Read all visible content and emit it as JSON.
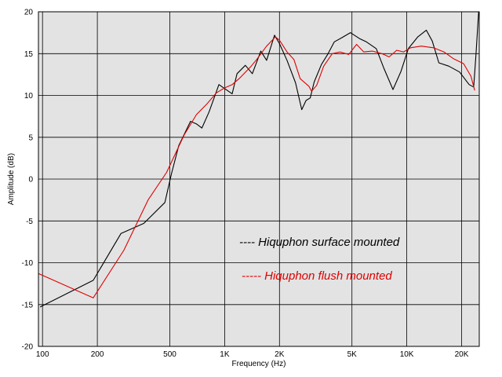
{
  "chart_data": {
    "type": "line",
    "x_scale": "log",
    "xlim": [
      95,
      25000
    ],
    "ylim": [
      -20,
      20
    ],
    "grid": true,
    "xlabel": "Frequency (Hz)",
    "ylabel": "Amplitude (dB)",
    "x_ticks": [
      {
        "value": 100,
        "label": "100"
      },
      {
        "value": 200,
        "label": "200"
      },
      {
        "value": 500,
        "label": "500"
      },
      {
        "value": 1000,
        "label": "1K"
      },
      {
        "value": 2000,
        "label": "2K"
      },
      {
        "value": 5000,
        "label": "5K"
      },
      {
        "value": 10000,
        "label": "10K"
      },
      {
        "value": 20000,
        "label": "20K"
      }
    ],
    "y_ticks": [
      {
        "value": 20,
        "label": "20"
      },
      {
        "value": 15,
        "label": "15"
      },
      {
        "value": 10,
        "label": "10"
      },
      {
        "value": 5,
        "label": "5"
      },
      {
        "value": 0,
        "label": "0"
      },
      {
        "value": -5,
        "label": "-5"
      },
      {
        "value": -10,
        "label": "-10"
      },
      {
        "value": -15,
        "label": "-15"
      },
      {
        "value": -20,
        "label": "-20"
      }
    ],
    "series": [
      {
        "name": "Hiquphon surface mounted",
        "legend_text": "---- Hiquphon surface mounted",
        "color": "#000000",
        "points": [
          [
            97,
            -15.3
          ],
          [
            190,
            -12.1
          ],
          [
            270,
            -6.5
          ],
          [
            360,
            -5.3
          ],
          [
            470,
            -2.8
          ],
          [
            510,
            0.6
          ],
          [
            560,
            4.0
          ],
          [
            650,
            6.9
          ],
          [
            700,
            6.6
          ],
          [
            750,
            6.1
          ],
          [
            820,
            8.0
          ],
          [
            930,
            11.3
          ],
          [
            1100,
            10.2
          ],
          [
            1170,
            12.6
          ],
          [
            1300,
            13.6
          ],
          [
            1420,
            12.6
          ],
          [
            1580,
            15.3
          ],
          [
            1700,
            14.2
          ],
          [
            1880,
            17.2
          ],
          [
            2000,
            16.2
          ],
          [
            2200,
            14.2
          ],
          [
            2450,
            11.5
          ],
          [
            2650,
            8.3
          ],
          [
            2800,
            9.4
          ],
          [
            2950,
            9.7
          ],
          [
            3100,
            11.6
          ],
          [
            3400,
            13.7
          ],
          [
            3700,
            15.0
          ],
          [
            4000,
            16.4
          ],
          [
            4400,
            16.9
          ],
          [
            4900,
            17.5
          ],
          [
            5500,
            16.8
          ],
          [
            6000,
            16.4
          ],
          [
            6800,
            15.6
          ],
          [
            7500,
            13.2
          ],
          [
            8400,
            10.7
          ],
          [
            9300,
            12.9
          ],
          [
            10200,
            15.6
          ],
          [
            11500,
            17.0
          ],
          [
            12800,
            17.8
          ],
          [
            13800,
            16.5
          ],
          [
            15000,
            13.9
          ],
          [
            17000,
            13.5
          ],
          [
            19500,
            12.8
          ],
          [
            22000,
            11.3
          ],
          [
            23300,
            11.0
          ],
          [
            24000,
            15.0
          ],
          [
            24800,
            20.0
          ]
        ]
      },
      {
        "name": "Hiquphon flush mounted",
        "legend_text": "----- Hiquphon flush mounted",
        "color": "#e00000",
        "points": [
          [
            95,
            -11.3
          ],
          [
            190,
            -14.2
          ],
          [
            280,
            -8.5
          ],
          [
            380,
            -2.5
          ],
          [
            480,
            0.8
          ],
          [
            600,
            5.3
          ],
          [
            700,
            7.7
          ],
          [
            800,
            9.0
          ],
          [
            900,
            10.3
          ],
          [
            1000,
            10.9
          ],
          [
            1100,
            11.3
          ],
          [
            1200,
            12.0
          ],
          [
            1400,
            13.5
          ],
          [
            1500,
            14.3
          ],
          [
            1700,
            15.9
          ],
          [
            1900,
            17.0
          ],
          [
            2000,
            16.6
          ],
          [
            2200,
            15.2
          ],
          [
            2400,
            14.3
          ],
          [
            2600,
            12.0
          ],
          [
            2900,
            11.1
          ],
          [
            3000,
            10.5
          ],
          [
            3200,
            11.2
          ],
          [
            3500,
            13.5
          ],
          [
            3900,
            15.0
          ],
          [
            4300,
            15.2
          ],
          [
            4800,
            14.9
          ],
          [
            5300,
            16.1
          ],
          [
            5800,
            15.2
          ],
          [
            6500,
            15.3
          ],
          [
            7300,
            15.0
          ],
          [
            8000,
            14.6
          ],
          [
            8800,
            15.4
          ],
          [
            9600,
            15.2
          ],
          [
            10500,
            15.7
          ],
          [
            12000,
            15.9
          ],
          [
            14000,
            15.7
          ],
          [
            16000,
            15.2
          ],
          [
            18000,
            14.4
          ],
          [
            20500,
            13.8
          ],
          [
            22500,
            12.3
          ],
          [
            23600,
            10.6
          ]
        ]
      }
    ]
  }
}
